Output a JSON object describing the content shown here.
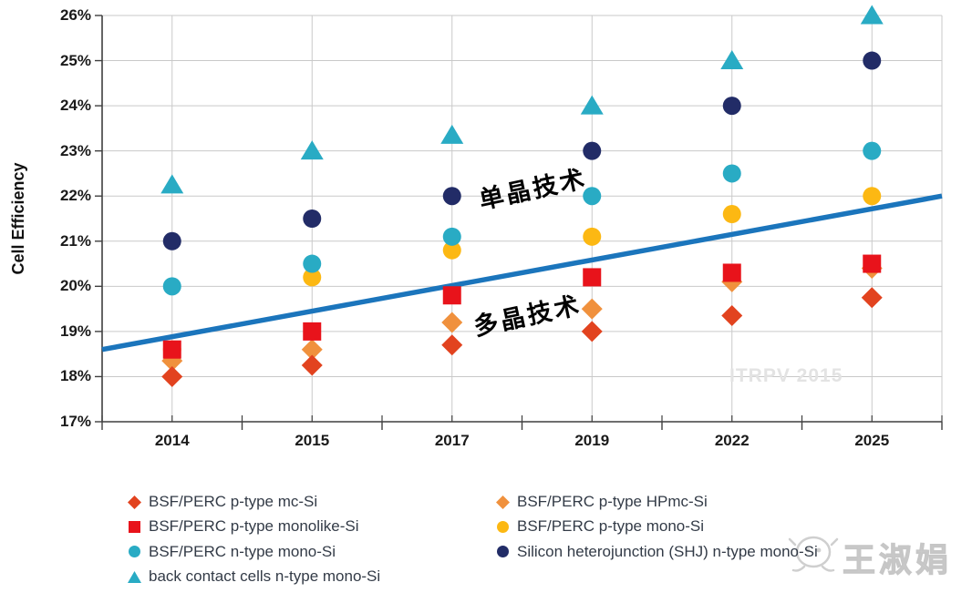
{
  "chart_data": {
    "type": "scatter",
    "title": "",
    "ylabel": "Cell Efficiency",
    "xlabel": "",
    "categories": [
      "2014",
      "2015",
      "2017",
      "2019",
      "2022",
      "2025"
    ],
    "y_axis": {
      "min": 17,
      "max": 26,
      "step": 1,
      "tick_suffix": "%"
    },
    "grid": true,
    "legend_position": "bottom",
    "series": [
      {
        "name": "BSF/PERC p-type mc-Si",
        "marker": "diamond",
        "color": "#e2431f",
        "values": [
          18.0,
          18.25,
          18.7,
          19.0,
          19.35,
          19.75
        ]
      },
      {
        "name": "BSF/PERC p-type HPmc-Si",
        "marker": "diamond",
        "color": "#f0913d",
        "values": [
          18.35,
          18.6,
          19.2,
          19.5,
          20.1,
          20.4
        ]
      },
      {
        "name": "BSF/PERC p-type monolike-Si",
        "marker": "square",
        "color": "#e8131b",
        "values": [
          18.6,
          19.0,
          19.8,
          20.2,
          20.3,
          20.5
        ]
      },
      {
        "name": "BSF/PERC p-type mono-Si",
        "marker": "circle",
        "color": "#fcb813",
        "values": [
          18.6,
          20.2,
          20.8,
          21.1,
          21.6,
          22.0
        ]
      },
      {
        "name": "BSF/PERC n-type mono-Si",
        "marker": "circle",
        "color": "#29abc4",
        "values": [
          20.0,
          20.5,
          21.1,
          22.0,
          22.5,
          23.0
        ]
      },
      {
        "name": "Silicon heterojunction (SHJ) n-type mono-Si",
        "marker": "circle",
        "color": "#222c67",
        "values": [
          21.0,
          21.5,
          22.0,
          23.0,
          24.0,
          25.0
        ]
      },
      {
        "name": "back contact cells n-type mono-Si",
        "marker": "triangle",
        "color": "#29abc4",
        "values": [
          22.25,
          23.0,
          23.35,
          24.0,
          25.0,
          26.0
        ]
      }
    ],
    "render_order": [
      3,
      1,
      0,
      2,
      4,
      5,
      6
    ],
    "trend_line": {
      "color": "#1b75bc",
      "start_value": 18.6,
      "end_value": 22.0
    },
    "annotations": [
      {
        "text": "单晶技术"
      },
      {
        "text": "多晶技术"
      }
    ]
  },
  "legend": {
    "left_column": [
      0,
      2,
      4,
      6
    ],
    "right_column": [
      1,
      3,
      5
    ]
  },
  "watermarks": {
    "itrpv": "ITRPV 2015",
    "author": "王淑娟",
    "author_icon": "cartoon-face-icon"
  },
  "colors": {
    "grid": "#c9c9c9",
    "axis": "#3f3f3f",
    "tick_text": "#1a1a1a",
    "legend_text": "#333b47",
    "trend": "#1b75bc",
    "watermark": "#e3e3e3",
    "author_watermark": "#cccccc"
  }
}
